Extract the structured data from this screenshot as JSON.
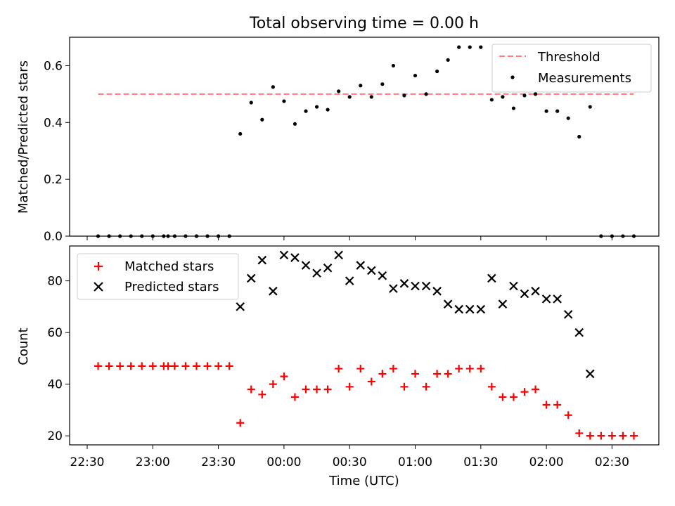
{
  "chart_data": [
    {
      "type": "scatter",
      "title": "Total observing time = 0.00 h",
      "xlabel": "",
      "ylabel": "Matched/Predicted stars",
      "ylim": [
        0,
        0.7
      ],
      "yticks": [
        "0.0",
        "0.2",
        "0.4",
        "0.6"
      ],
      "legend_position": "top-right",
      "threshold": {
        "name": "Threshold",
        "value": 0.5,
        "x_range": [
          "22:35",
          "02:40"
        ],
        "color": "#ff7777"
      },
      "series": [
        {
          "name": "Measurements",
          "color": "#000000",
          "x": [
            "22:35",
            "22:40",
            "22:45",
            "22:50",
            "22:55",
            "23:00",
            "23:05",
            "23:07",
            "23:10",
            "23:15",
            "23:20",
            "23:25",
            "23:30",
            "23:35",
            "23:40",
            "23:45",
            "23:50",
            "23:55",
            "00:00",
            "00:05",
            "00:10",
            "00:15",
            "00:20",
            "00:25",
            "00:30",
            "00:35",
            "00:40",
            "00:45",
            "00:50",
            "00:55",
            "01:00",
            "01:05",
            "01:10",
            "01:15",
            "01:20",
            "01:25",
            "01:30",
            "01:35",
            "01:40",
            "01:45",
            "01:50",
            "01:55",
            "02:00",
            "02:05",
            "02:10",
            "02:15",
            "02:20",
            "02:25",
            "02:30",
            "02:35",
            "02:40"
          ],
          "y": [
            0,
            0,
            0,
            0,
            0,
            0,
            0,
            0,
            0,
            0,
            0,
            0,
            0,
            0,
            0.36,
            0.47,
            0.41,
            0.525,
            0.475,
            0.395,
            0.44,
            0.455,
            0.445,
            0.51,
            0.49,
            0.53,
            0.49,
            0.535,
            0.6,
            0.495,
            0.565,
            0.5,
            0.58,
            0.62,
            0.665,
            0.665,
            0.665,
            0.48,
            0.49,
            0.45,
            0.495,
            0.5,
            0.44,
            0.44,
            0.415,
            0.35,
            0.455,
            0,
            0,
            0,
            0
          ]
        }
      ]
    },
    {
      "type": "scatter",
      "xlabel": "Time (UTC)",
      "ylabel": "Count",
      "ylim": [
        16.5,
        93.5
      ],
      "yticks": [
        "20",
        "40",
        "60",
        "80"
      ],
      "xticks": [
        "22:30",
        "23:00",
        "23:30",
        "00:00",
        "00:30",
        "01:00",
        "01:30",
        "02:00",
        "02:30"
      ],
      "legend_position": "top-left",
      "series": [
        {
          "name": "Matched stars",
          "marker": "plus",
          "color": "#ff0000",
          "x": [
            "22:35",
            "22:40",
            "22:45",
            "22:50",
            "22:55",
            "23:00",
            "23:05",
            "23:07",
            "23:10",
            "23:15",
            "23:20",
            "23:25",
            "23:30",
            "23:35",
            "23:40",
            "23:45",
            "23:50",
            "23:55",
            "00:00",
            "00:05",
            "00:10",
            "00:15",
            "00:20",
            "00:25",
            "00:30",
            "00:35",
            "00:40",
            "00:45",
            "00:50",
            "00:55",
            "01:00",
            "01:05",
            "01:10",
            "01:15",
            "01:20",
            "01:25",
            "01:30",
            "01:35",
            "01:40",
            "01:45",
            "01:50",
            "01:55",
            "02:00",
            "02:05",
            "02:10",
            "02:15",
            "02:20",
            "02:25",
            "02:30",
            "02:35",
            "02:40"
          ],
          "y": [
            47,
            47,
            47,
            47,
            47,
            47,
            47,
            47,
            47,
            47,
            47,
            47,
            47,
            47,
            25,
            38,
            36,
            40,
            43,
            35,
            38,
            38,
            38,
            46,
            39,
            46,
            41,
            44,
            46,
            39,
            44,
            39,
            44,
            44,
            46,
            46,
            46,
            39,
            35,
            35,
            37,
            38,
            32,
            32,
            28,
            21,
            20,
            20,
            20,
            20,
            20
          ]
        },
        {
          "name": "Predicted stars",
          "marker": "x",
          "color": "#000000",
          "x": [
            "23:40",
            "23:45",
            "23:50",
            "23:55",
            "00:00",
            "00:05",
            "00:10",
            "00:15",
            "00:20",
            "00:25",
            "00:30",
            "00:35",
            "00:40",
            "00:45",
            "00:50",
            "00:55",
            "01:00",
            "01:05",
            "01:10",
            "01:15",
            "01:20",
            "01:25",
            "01:30",
            "01:35",
            "01:40",
            "01:45",
            "01:50",
            "01:55",
            "02:00",
            "02:05",
            "02:10",
            "02:15",
            "02:20"
          ],
          "y": [
            70,
            81,
            88,
            76,
            90,
            89,
            86,
            83,
            85,
            90,
            80,
            86,
            84,
            82,
            77,
            79,
            78,
            78,
            76,
            71,
            69,
            69,
            69,
            81,
            71,
            78,
            75,
            76,
            73,
            73,
            67,
            60,
            44
          ]
        }
      ]
    }
  ]
}
